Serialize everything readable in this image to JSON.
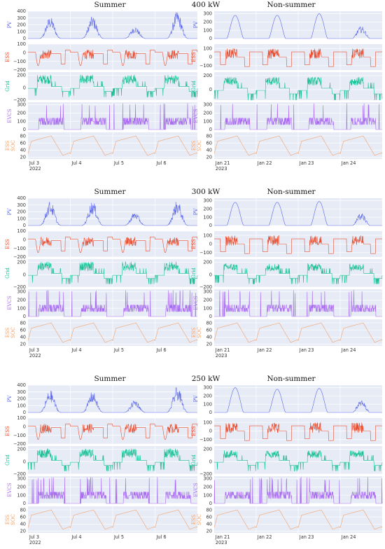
{
  "figure": {
    "sections": [
      {
        "power_label": "400 kW"
      },
      {
        "power_label": "300 kW"
      },
      {
        "power_label": "250 kW"
      }
    ],
    "season_titles": [
      "Summer",
      "Non-summer"
    ],
    "series_colors": {
      "PV": "#5b67e8",
      "ESS": "#ea4e30",
      "Grid": "#19c195",
      "EVCS": "#a96cf0",
      "ESS SOC": "#f3a16a"
    },
    "panel_background": "#e6ebf6",
    "gridline_color": "#ffffff"
  },
  "chart_data": [
    {
      "type": "line",
      "season": "Summer",
      "capacity": "400 kW",
      "x_ticks": [
        "Jul 3\n2022",
        "Jul 4",
        "Jul 5",
        "Jul 6"
      ],
      "x_range": [
        "2022-07-03",
        "2022-07-07"
      ],
      "rows": [
        {
          "ylabel": "PV",
          "yticks": [
            0,
            100,
            200,
            300,
            400
          ],
          "ylim": [
            0,
            400
          ],
          "peaks_by_day": [
            320,
            330,
            180,
            400
          ]
        },
        {
          "ylabel": "ESS",
          "yticks": [
            -200,
            -100,
            0,
            100
          ],
          "ylim": [
            -200,
            100
          ]
        },
        {
          "ylabel": "Grid",
          "yticks": [
            -200,
            0,
            200
          ],
          "ylim": [
            -200,
            250
          ]
        },
        {
          "ylabel": "EVCS",
          "yticks": [
            0,
            100,
            200,
            300
          ],
          "ylim": [
            0,
            330
          ]
        },
        {
          "ylabel": "ESS SOC",
          "yticks": [
            20,
            40,
            60,
            80
          ],
          "ylim": [
            15,
            90
          ]
        }
      ]
    },
    {
      "type": "line",
      "season": "Non-summer",
      "capacity": "400 kW",
      "x_ticks": [
        "Jan 21\n2023",
        "Jan 22",
        "Jan 23",
        "Jan 24"
      ],
      "x_range": [
        "2023-01-21",
        "2023-01-25"
      ],
      "rows": [
        {
          "ylabel": "PV",
          "yticks": [
            0,
            100,
            200,
            300
          ],
          "ylim": [
            0,
            330
          ],
          "peaks_by_day": [
            280,
            280,
            300,
            150
          ]
        },
        {
          "ylabel": "ESS",
          "yticks": [
            -100,
            0,
            100
          ],
          "ylim": [
            -150,
            150
          ]
        },
        {
          "ylabel": "Grid",
          "yticks": [
            0,
            200
          ],
          "ylim": [
            -150,
            250
          ]
        },
        {
          "ylabel": "EVCS",
          "yticks": [
            0,
            100,
            200,
            300
          ],
          "ylim": [
            0,
            330
          ]
        },
        {
          "ylabel": "ESS SOC",
          "yticks": [
            20,
            40,
            60,
            80
          ],
          "ylim": [
            15,
            90
          ]
        }
      ]
    },
    {
      "type": "line",
      "season": "Summer",
      "capacity": "300 kW",
      "x_ticks": [
        "Jul 3\n2022",
        "Jul 4",
        "Jul 5",
        "Jul 6"
      ],
      "x_range": [
        "2022-07-03",
        "2022-07-07"
      ],
      "rows": [
        {
          "ylabel": "PV",
          "yticks": [
            0,
            100,
            200,
            300,
            400
          ],
          "ylim": [
            0,
            400
          ],
          "peaks_by_day": [
            360,
            360,
            200,
            370
          ]
        },
        {
          "ylabel": "ESS",
          "yticks": [
            -200,
            -100,
            0,
            100
          ],
          "ylim": [
            -200,
            100
          ]
        },
        {
          "ylabel": "Grid",
          "yticks": [
            -200,
            0,
            200
          ],
          "ylim": [
            -200,
            250
          ]
        },
        {
          "ylabel": "EVCS",
          "yticks": [
            0,
            100,
            200,
            300
          ],
          "ylim": [
            0,
            330
          ]
        },
        {
          "ylabel": "ESS SOC",
          "yticks": [
            20,
            40,
            60,
            80
          ],
          "ylim": [
            15,
            90
          ]
        }
      ]
    },
    {
      "type": "line",
      "season": "Non-summer",
      "capacity": "300 kW",
      "x_ticks": [
        "Jan 21\n2023",
        "Jan 22",
        "Jan 23",
        "Jan 24"
      ],
      "x_range": [
        "2023-01-21",
        "2023-01-25"
      ],
      "rows": [
        {
          "ylabel": "PV",
          "yticks": [
            0,
            100,
            200,
            300
          ],
          "ylim": [
            0,
            330
          ],
          "peaks_by_day": [
            280,
            280,
            290,
            150
          ]
        },
        {
          "ylabel": "ESS",
          "yticks": [
            -100,
            0,
            100
          ],
          "ylim": [
            -150,
            150
          ]
        },
        {
          "ylabel": "Grid",
          "yticks": [
            -200,
            0,
            200
          ],
          "ylim": [
            -200,
            250
          ]
        },
        {
          "ylabel": "EVCS",
          "yticks": [
            0,
            100,
            200,
            300
          ],
          "ylim": [
            0,
            330
          ]
        },
        {
          "ylabel": "ESS SOC",
          "yticks": [
            20,
            40,
            60,
            80
          ],
          "ylim": [
            15,
            90
          ]
        }
      ]
    },
    {
      "type": "line",
      "season": "Summer",
      "capacity": "250 kW",
      "x_ticks": [
        "Jul 3\n2022",
        "Jul 4",
        "Jul 5",
        "Jul 6"
      ],
      "x_range": [
        "2022-07-03",
        "2022-07-07"
      ],
      "rows": [
        {
          "ylabel": "PV",
          "yticks": [
            0,
            100,
            200,
            300,
            400
          ],
          "ylim": [
            0,
            400
          ],
          "peaks_by_day": [
            330,
            310,
            190,
            380
          ]
        },
        {
          "ylabel": "ESS",
          "yticks": [
            -200,
            -100,
            0,
            100
          ],
          "ylim": [
            -200,
            100
          ]
        },
        {
          "ylabel": "Grid",
          "yticks": [
            -200,
            0,
            200
          ],
          "ylim": [
            -200,
            250
          ]
        },
        {
          "ylabel": "EVCS",
          "yticks": [
            0,
            100,
            200,
            300
          ],
          "ylim": [
            0,
            330
          ]
        },
        {
          "ylabel": "ESS SOC",
          "yticks": [
            20,
            40,
            60,
            80
          ],
          "ylim": [
            15,
            90
          ]
        }
      ]
    },
    {
      "type": "line",
      "season": "Non-summer",
      "capacity": "250 kW",
      "x_ticks": [
        "Jan 21\n2023",
        "Jan 22",
        "Jan 23",
        "Jan 24"
      ],
      "x_range": [
        "2023-01-21",
        "2023-01-25"
      ],
      "rows": [
        {
          "ylabel": "PV",
          "yticks": [
            0,
            100,
            200,
            300
          ],
          "ylim": [
            0,
            330
          ],
          "peaks_by_day": [
            300,
            280,
            290,
            150
          ]
        },
        {
          "ylabel": "ESS",
          "yticks": [
            -100,
            0,
            100
          ],
          "ylim": [
            -150,
            150
          ]
        },
        {
          "ylabel": "Grid",
          "yticks": [
            -200,
            0,
            200
          ],
          "ylim": [
            -200,
            250
          ]
        },
        {
          "ylabel": "EVCS",
          "yticks": [
            0,
            100,
            200,
            300
          ],
          "ylim": [
            0,
            330
          ]
        },
        {
          "ylabel": "ESS SOC",
          "yticks": [
            20,
            40,
            60,
            80
          ],
          "ylim": [
            15,
            90
          ]
        }
      ]
    }
  ]
}
